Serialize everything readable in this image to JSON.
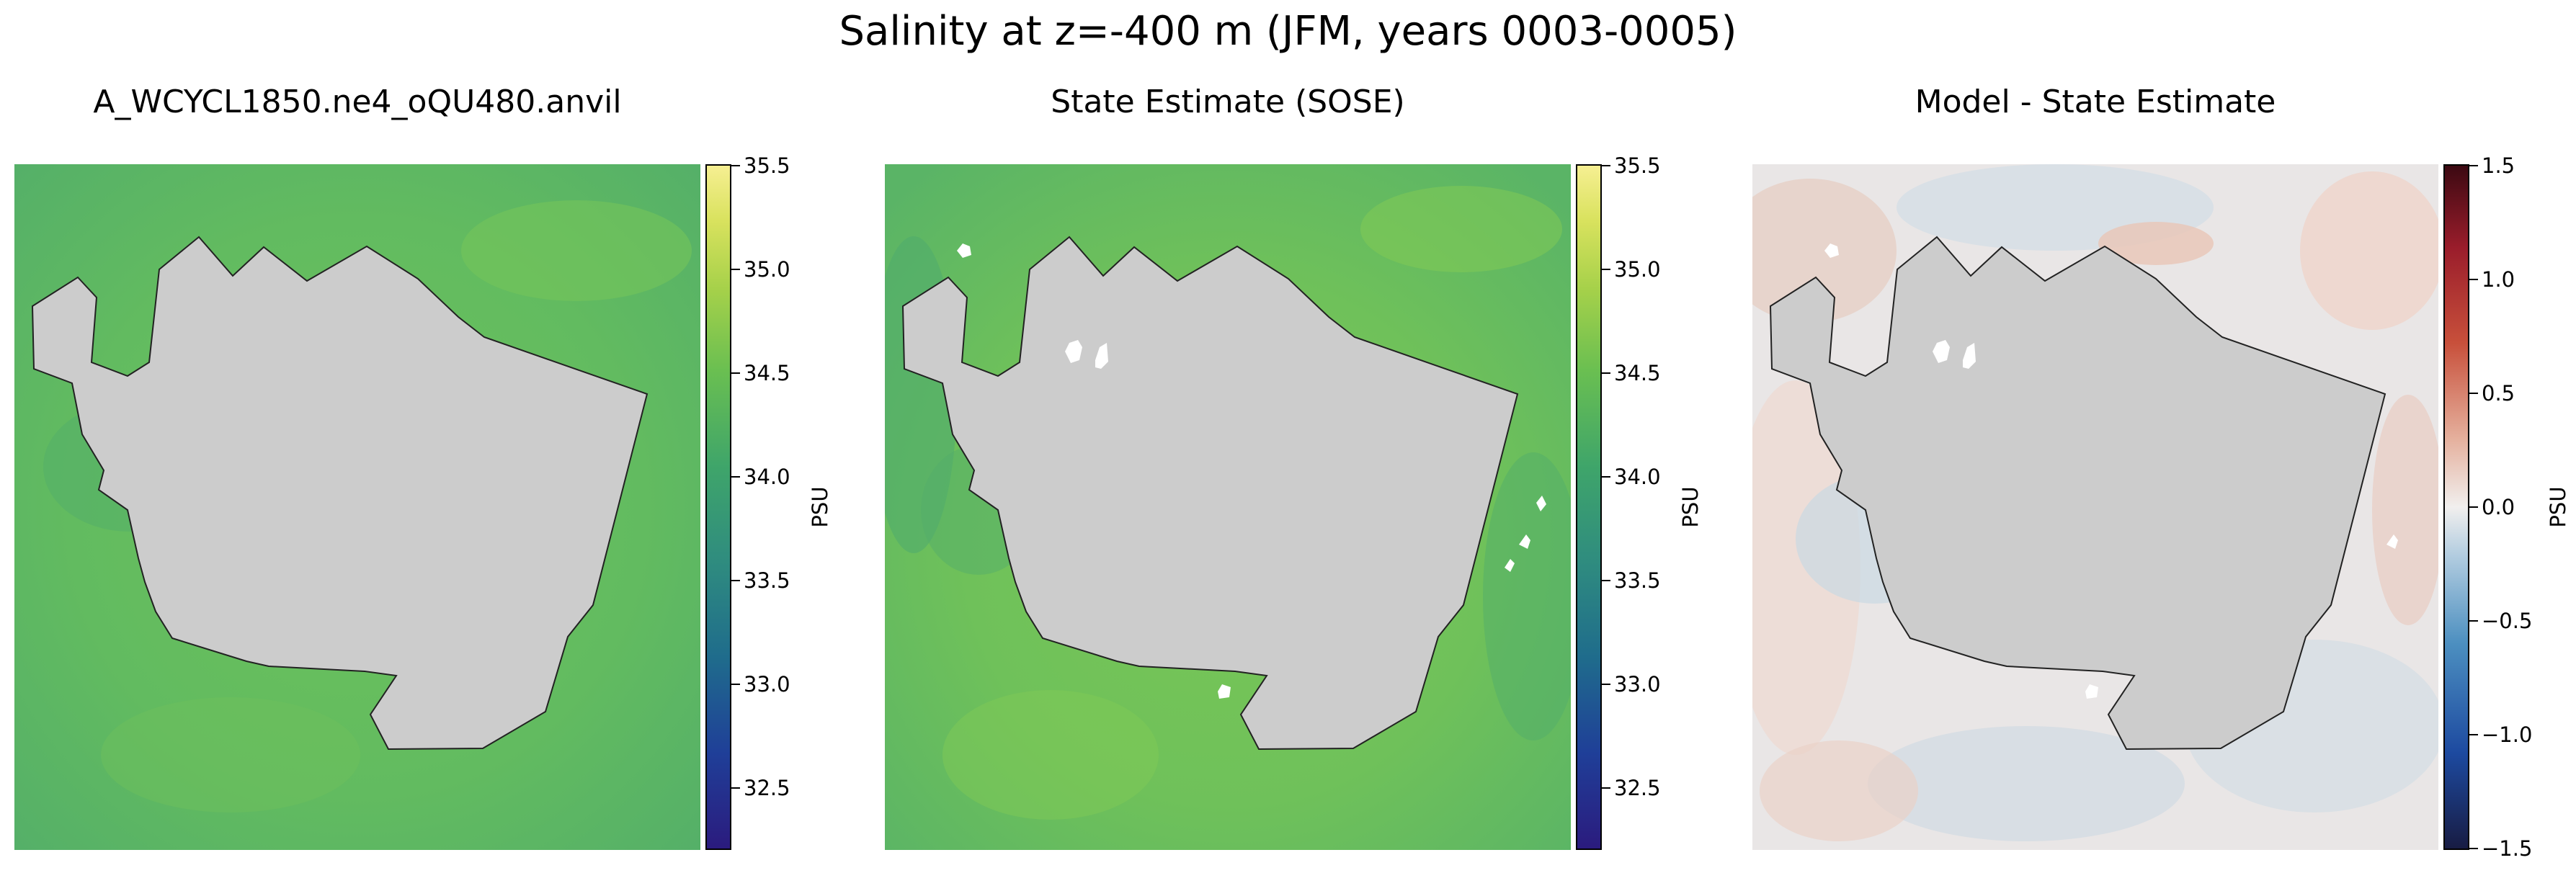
{
  "figure": {
    "suptitle": "Salinity at z=-400 m (JFM, years 0003-0005)"
  },
  "panels": [
    {
      "title": "A_WCYCL1850.ne4_oQU480.anvil",
      "colorbar": {
        "label": "PSU",
        "ticks": [
          "35.5",
          "35.0",
          "34.5",
          "34.0",
          "33.5",
          "33.0",
          "32.5"
        ],
        "tick_values": [
          35.5,
          35.0,
          34.5,
          34.0,
          33.5,
          33.0,
          32.5
        ],
        "range": [
          32.2,
          35.5
        ],
        "colormap": "haline",
        "colors": [
          "#2b1b7e",
          "#1f3f98",
          "#1f6c8c",
          "#2f8c7f",
          "#3fa56a",
          "#6abf51",
          "#a6d14a",
          "#d9e25e",
          "#f6ef92"
        ]
      },
      "field": {
        "ocean_color": "#5fb962",
        "land_color": "#cccccc",
        "description_value": "approx 34.6 PSU"
      }
    },
    {
      "title": "State Estimate (SOSE)",
      "colorbar": {
        "label": "PSU",
        "ticks": [
          "35.5",
          "35.0",
          "34.5",
          "34.0",
          "33.5",
          "33.0",
          "32.5"
        ],
        "tick_values": [
          35.5,
          35.0,
          34.5,
          34.0,
          33.5,
          33.0,
          32.5
        ],
        "range": [
          32.2,
          35.5
        ],
        "colormap": "haline",
        "colors": [
          "#2b1b7e",
          "#1f3f98",
          "#1f6c8c",
          "#2f8c7f",
          "#3fa56a",
          "#6abf51",
          "#a6d14a",
          "#d9e25e",
          "#f6ef92"
        ]
      },
      "field": {
        "ocean_color": "#6cc05a",
        "land_color": "#cccccc"
      }
    },
    {
      "title": "Model - State Estimate",
      "colorbar": {
        "label": "PSU",
        "ticks": [
          "1.5",
          "1.0",
          "0.5",
          "0.0",
          "−0.5",
          "−1.0",
          "−1.5"
        ],
        "tick_values": [
          1.5,
          1.0,
          0.5,
          0.0,
          -0.5,
          -1.0,
          -1.5
        ],
        "range": [
          -1.5,
          1.5
        ],
        "colormap": "balance",
        "colors": [
          "#181c43",
          "#1d4aa0",
          "#4c8fc0",
          "#b3cde0",
          "#f1efee",
          "#e5b09d",
          "#c8503b",
          "#9a1d2b",
          "#3c0912"
        ]
      },
      "field": {
        "ocean_color": "#e8e4e4",
        "land_color": "#cccccc"
      }
    }
  ],
  "chart_data": {
    "type": "heatmap",
    "title": "Salinity at z=-400 m (JFM, years 0003-0005)",
    "subplots": [
      {
        "title": "A_WCYCL1850.ne4_oQU480.anvil",
        "variable": "Salinity",
        "units": "PSU",
        "clim": [
          32.2,
          35.5
        ],
        "typical_value": 34.6
      },
      {
        "title": "State Estimate (SOSE)",
        "variable": "Salinity",
        "units": "PSU",
        "clim": [
          32.2,
          35.5
        ],
        "typical_value": 34.6
      },
      {
        "title": "Model - State Estimate",
        "variable": "Salinity difference",
        "units": "PSU",
        "clim": [
          -1.5,
          1.5
        ],
        "typical_value": 0.0
      }
    ]
  }
}
